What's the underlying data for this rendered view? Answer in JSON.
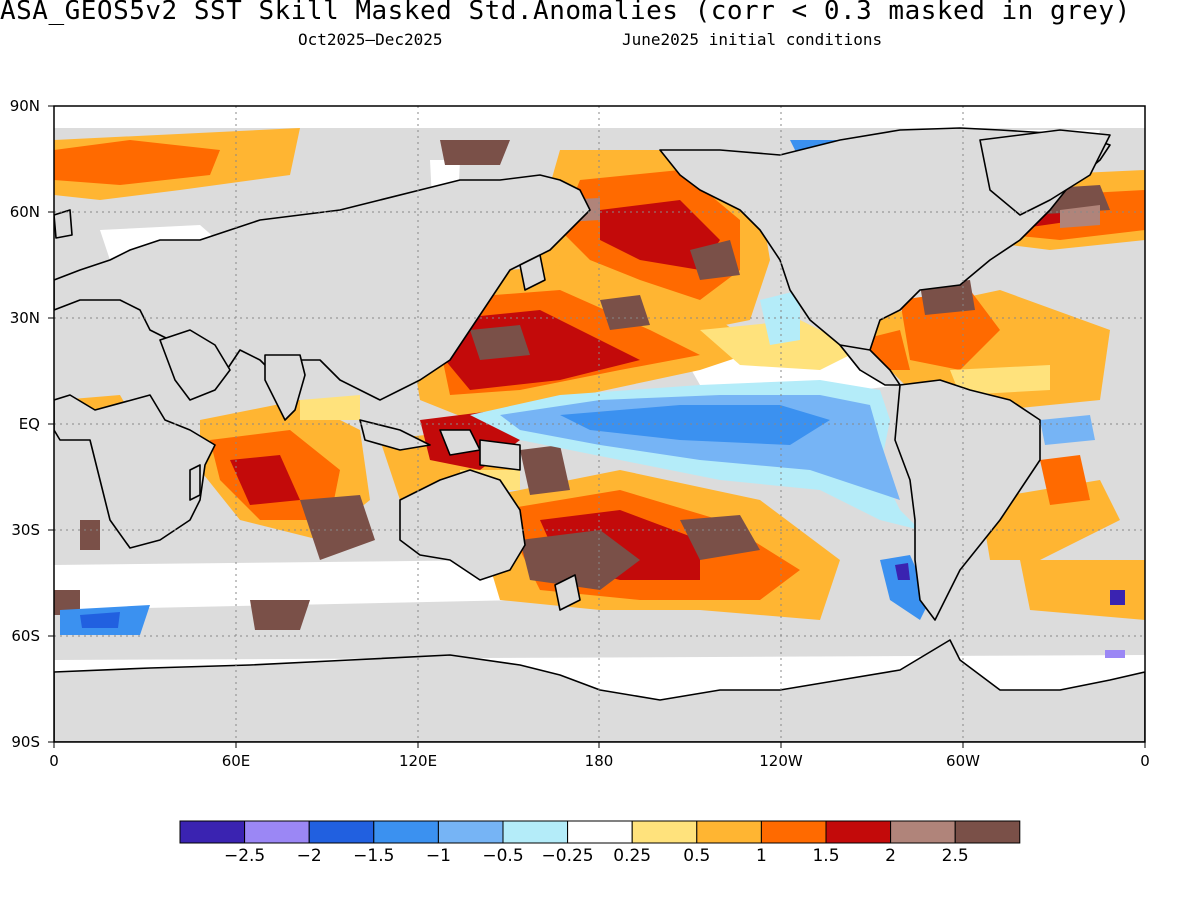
{
  "title": "ASA_GEOS5v2  SST Skill Masked Std.Anomalies (corr < 0.3 masked in grey)",
  "subtitle_period": "Oct2025–Dec2025",
  "subtitle_ic": "June2025 initial conditions",
  "lat_ticks": [
    "90N",
    "60N",
    "30N",
    "EQ",
    "30S",
    "60S",
    "90S"
  ],
  "lon_ticks": [
    "0",
    "60E",
    "120E",
    "180",
    "120W",
    "60W",
    "0"
  ],
  "colorbar": {
    "colors": [
      "#3a23b1",
      "#9b87f5",
      "#2160e0",
      "#3b91f0",
      "#76b4f5",
      "#b4ecf9",
      "#ffffff",
      "#ffe27c",
      "#ffb532",
      "#ff6a00",
      "#c30a0a",
      "#b0847a",
      "#7a5048"
    ],
    "labels": [
      "−2.5",
      "−2",
      "−1.5",
      "−1",
      "−0.5",
      "−0.25",
      "0.25",
      "0.5",
      "1",
      "1.5",
      "2",
      "2.5"
    ]
  },
  "colors": {
    "mask_grey": "#dcdcdc",
    "land_outline": "#000000"
  }
}
